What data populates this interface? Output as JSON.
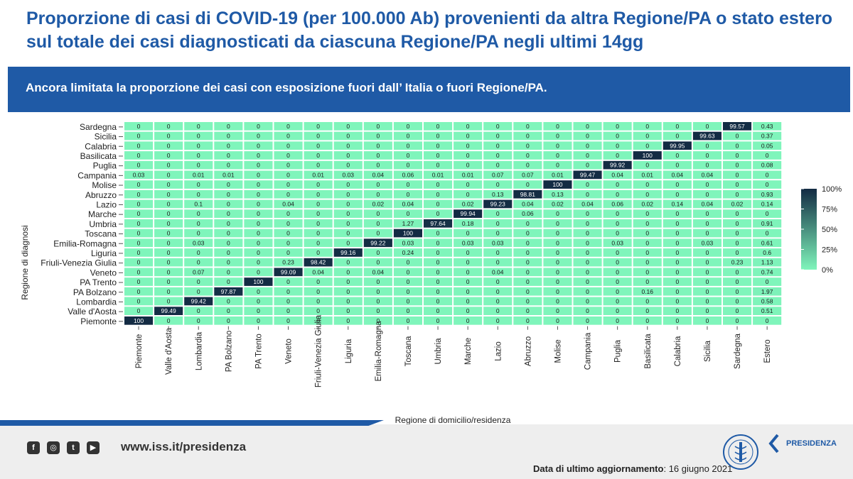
{
  "title": "Proporzione di casi di COVID-19 (per 100.000 Ab) provenienti da altra Regione/PA o stato estero sul totale dei casi diagnosticati da ciascuna Regione/PA negli ultimi 14gg",
  "banner": "Ancora limitata la proporzione dei casi con esposizione fuori dall’ Italia o fuori Regione/PA.",
  "footer": {
    "url": "www.iss.it/presidenza",
    "update_label": "Data di ultimo aggiornamento",
    "update_date": ": 16 giugno 2021",
    "presidenza": "PRESIDENZA",
    "icons": [
      "facebook-icon",
      "instagram-icon",
      "twitter-icon",
      "youtube-icon"
    ]
  },
  "colors": {
    "accent": "#1f5aa6",
    "low": "#7ff5bb",
    "high": "#132b43"
  },
  "chart_data": {
    "type": "heatmap",
    "xlabel": "Regione di domicilio/residenza",
    "ylabel": "Regione di diagnosi",
    "legend": {
      "position": "right",
      "ticks": [
        "100%",
        "75%",
        "50%",
        "25%",
        "0%"
      ]
    },
    "columns": [
      "Piemonte",
      "Valle d'Aosta",
      "Lombardia",
      "PA Bolzano",
      "PA Trento",
      "Veneto",
      "Friuli-Venezia Giulia",
      "Liguria",
      "Emilia-Romagna",
      "Toscana",
      "Umbria",
      "Marche",
      "Lazio",
      "Abruzzo",
      "Molise",
      "Campania",
      "Puglia",
      "Basilicata",
      "Calabria",
      "Sicilia",
      "Sardegna",
      "Estero"
    ],
    "rows": [
      {
        "name": "Sardegna",
        "values": [
          "0",
          "0",
          "0",
          "0",
          "0",
          "0",
          "0",
          "0",
          "0",
          "0",
          "0",
          "0",
          "0",
          "0",
          "0",
          "0",
          "0",
          "0",
          "0",
          "0",
          "99.57",
          "0.43"
        ]
      },
      {
        "name": "Sicilia",
        "values": [
          "0",
          "0",
          "0",
          "0",
          "0",
          "0",
          "0",
          "0",
          "0",
          "0",
          "0",
          "0",
          "0",
          "0",
          "0",
          "0",
          "0",
          "0",
          "0",
          "99.63",
          "0",
          "0.37"
        ]
      },
      {
        "name": "Calabria",
        "values": [
          "0",
          "0",
          "0",
          "0",
          "0",
          "0",
          "0",
          "0",
          "0",
          "0",
          "0",
          "0",
          "0",
          "0",
          "0",
          "0",
          "0",
          "0",
          "99.95",
          "0",
          "0",
          "0.05"
        ]
      },
      {
        "name": "Basilicata",
        "values": [
          "0",
          "0",
          "0",
          "0",
          "0",
          "0",
          "0",
          "0",
          "0",
          "0",
          "0",
          "0",
          "0",
          "0",
          "0",
          "0",
          "0",
          "100",
          "0",
          "0",
          "0",
          "0"
        ]
      },
      {
        "name": "Puglia",
        "values": [
          "0",
          "0",
          "0",
          "0",
          "0",
          "0",
          "0",
          "0",
          "0",
          "0",
          "0",
          "0",
          "0",
          "0",
          "0",
          "0",
          "99.92",
          "0",
          "0",
          "0",
          "0",
          "0.08"
        ]
      },
      {
        "name": "Campania",
        "values": [
          "0.03",
          "0",
          "0.01",
          "0.01",
          "0",
          "0",
          "0.01",
          "0.03",
          "0.04",
          "0.06",
          "0.01",
          "0.01",
          "0.07",
          "0.07",
          "0.01",
          "99.47",
          "0.04",
          "0.01",
          "0.04",
          "0.04",
          "0",
          "0"
        ]
      },
      {
        "name": "Molise",
        "values": [
          "0",
          "0",
          "0",
          "0",
          "0",
          "0",
          "0",
          "0",
          "0",
          "0",
          "0",
          "0",
          "0",
          "0",
          "100",
          "0",
          "0",
          "0",
          "0",
          "0",
          "0",
          "0"
        ]
      },
      {
        "name": "Abruzzo",
        "values": [
          "0",
          "0",
          "0",
          "0",
          "0",
          "0",
          "0",
          "0",
          "0",
          "0",
          "0",
          "0",
          "0.13",
          "98.81",
          "0.13",
          "0",
          "0",
          "0",
          "0",
          "0",
          "0",
          "0.93"
        ]
      },
      {
        "name": "Lazio",
        "values": [
          "0",
          "0",
          "0.1",
          "0",
          "0",
          "0.04",
          "0",
          "0",
          "0.02",
          "0.04",
          "0",
          "0.02",
          "99.23",
          "0.04",
          "0.02",
          "0.04",
          "0.06",
          "0.02",
          "0.14",
          "0.04",
          "0.02",
          "0.14"
        ]
      },
      {
        "name": "Marche",
        "values": [
          "0",
          "0",
          "0",
          "0",
          "0",
          "0",
          "0",
          "0",
          "0",
          "0",
          "0",
          "99.94",
          "0",
          "0.06",
          "0",
          "0",
          "0",
          "0",
          "0",
          "0",
          "0",
          "0"
        ]
      },
      {
        "name": "Umbria",
        "values": [
          "0",
          "0",
          "0",
          "0",
          "0",
          "0",
          "0",
          "0",
          "0",
          "1.27",
          "97.64",
          "0.18",
          "0",
          "0",
          "0",
          "0",
          "0",
          "0",
          "0",
          "0",
          "0",
          "0.91"
        ]
      },
      {
        "name": "Toscana",
        "values": [
          "0",
          "0",
          "0",
          "0",
          "0",
          "0",
          "0",
          "0",
          "0",
          "100",
          "0",
          "0",
          "0",
          "0",
          "0",
          "0",
          "0",
          "0",
          "0",
          "0",
          "0",
          "0"
        ]
      },
      {
        "name": "Emilia-Romagna",
        "values": [
          "0",
          "0",
          "0.03",
          "0",
          "0",
          "0",
          "0",
          "0",
          "99.22",
          "0.03",
          "0",
          "0.03",
          "0.03",
          "0",
          "0",
          "0",
          "0.03",
          "0",
          "0",
          "0.03",
          "0",
          "0.61"
        ]
      },
      {
        "name": "Liguria",
        "values": [
          "0",
          "0",
          "0",
          "0",
          "0",
          "0",
          "0",
          "99.16",
          "0",
          "0.24",
          "0",
          "0",
          "0",
          "0",
          "0",
          "0",
          "0",
          "0",
          "0",
          "0",
          "0",
          "0.6"
        ]
      },
      {
        "name": "Friuli-Venezia Giulia",
        "values": [
          "0",
          "0",
          "0",
          "0",
          "0",
          "0.23",
          "98.42",
          "0",
          "0",
          "0",
          "0",
          "0",
          "0",
          "0",
          "0",
          "0",
          "0",
          "0",
          "0",
          "0",
          "0.23",
          "1.13"
        ]
      },
      {
        "name": "Veneto",
        "values": [
          "0",
          "0",
          "0.07",
          "0",
          "0",
          "99.09",
          "0.04",
          "0",
          "0.04",
          "0",
          "0",
          "0",
          "0.04",
          "0",
          "0",
          "0",
          "0",
          "0",
          "0",
          "0",
          "0",
          "0.74"
        ]
      },
      {
        "name": "PA Trento",
        "values": [
          "0",
          "0",
          "0",
          "0",
          "100",
          "0",
          "0",
          "0",
          "0",
          "0",
          "0",
          "0",
          "0",
          "0",
          "0",
          "0",
          "0",
          "0",
          "0",
          "0",
          "0",
          "0"
        ]
      },
      {
        "name": "PA Bolzano",
        "values": [
          "0",
          "0",
          "0",
          "97.87",
          "0",
          "0",
          "0",
          "0",
          "0",
          "0",
          "0",
          "0",
          "0",
          "0",
          "0",
          "0",
          "0",
          "0.16",
          "0",
          "0",
          "0",
          "1.97"
        ]
      },
      {
        "name": "Lombardia",
        "values": [
          "0",
          "0",
          "99.42",
          "0",
          "0",
          "0",
          "0",
          "0",
          "0",
          "0",
          "0",
          "0",
          "0",
          "0",
          "0",
          "0",
          "0",
          "0",
          "0",
          "0",
          "0",
          "0.58"
        ]
      },
      {
        "name": "Valle d'Aosta",
        "values": [
          "0",
          "99.49",
          "0",
          "0",
          "0",
          "0",
          "0",
          "0",
          "0",
          "0",
          "0",
          "0",
          "0",
          "0",
          "0",
          "0",
          "0",
          "0",
          "0",
          "0",
          "0",
          "0.51"
        ]
      },
      {
        "name": "Piemonte",
        "values": [
          "100",
          "0",
          "0",
          "0",
          "0",
          "0",
          "0",
          "0",
          "0",
          "0",
          "0",
          "0",
          "0",
          "0",
          "0",
          "0",
          "0",
          "0",
          "0",
          "0",
          "0",
          "0"
        ]
      }
    ]
  }
}
